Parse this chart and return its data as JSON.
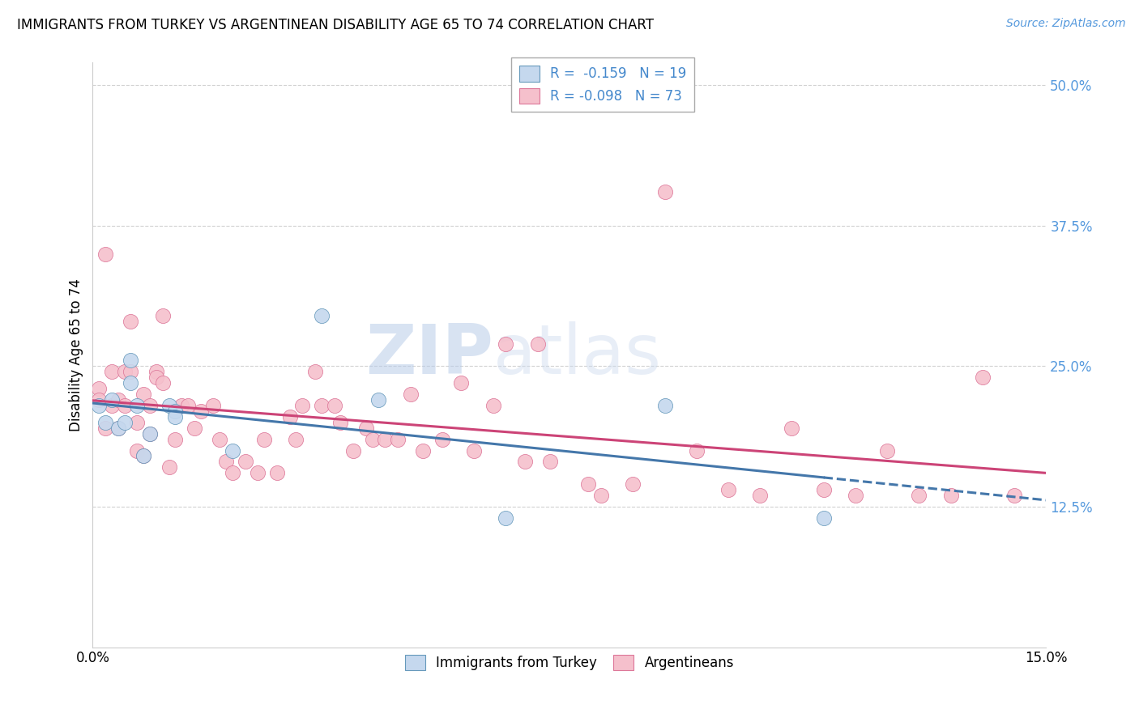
{
  "title": "IMMIGRANTS FROM TURKEY VS ARGENTINEAN DISABILITY AGE 65 TO 74 CORRELATION CHART",
  "source": "Source: ZipAtlas.com",
  "ylabel": "Disability Age 65 to 74",
  "xmin": 0.0,
  "xmax": 0.15,
  "ymin": 0.0,
  "ymax": 0.52,
  "ytick_vals": [
    0.125,
    0.25,
    0.375,
    0.5
  ],
  "ytick_labels": [
    "12.5%",
    "25.0%",
    "37.5%",
    "50.0%"
  ],
  "xtick_vals": [
    0.0,
    0.05,
    0.1,
    0.15
  ],
  "xtick_labels": [
    "0.0%",
    "",
    "",
    "15.0%"
  ],
  "turkey_R": -0.159,
  "turkey_N": 19,
  "argentina_R": -0.098,
  "argentina_N": 73,
  "legend_label_turkey": "Immigrants from Turkey",
  "legend_label_argentina": "Argentineans",
  "turkey_fill_color": "#c5d8ee",
  "turkey_edge_color": "#6699bb",
  "argentina_fill_color": "#f5c0cc",
  "argentina_edge_color": "#dd7799",
  "turkey_line_color": "#4477aa",
  "argentina_line_color": "#cc4477",
  "grid_color": "#cccccc",
  "watermark_zi": "ZIP",
  "watermark_atlas": "atlas",
  "turkey_x": [
    0.001,
    0.002,
    0.003,
    0.004,
    0.005,
    0.006,
    0.006,
    0.007,
    0.008,
    0.009,
    0.012,
    0.013,
    0.013,
    0.022,
    0.036,
    0.045,
    0.065,
    0.09,
    0.115
  ],
  "turkey_y": [
    0.215,
    0.2,
    0.22,
    0.195,
    0.2,
    0.255,
    0.235,
    0.215,
    0.17,
    0.19,
    0.215,
    0.21,
    0.205,
    0.175,
    0.295,
    0.22,
    0.115,
    0.215,
    0.115
  ],
  "argentina_x": [
    0.001,
    0.001,
    0.002,
    0.002,
    0.003,
    0.003,
    0.004,
    0.004,
    0.005,
    0.005,
    0.006,
    0.006,
    0.007,
    0.007,
    0.008,
    0.008,
    0.009,
    0.009,
    0.01,
    0.01,
    0.011,
    0.011,
    0.012,
    0.013,
    0.014,
    0.015,
    0.016,
    0.017,
    0.019,
    0.02,
    0.021,
    0.022,
    0.024,
    0.026,
    0.027,
    0.029,
    0.031,
    0.032,
    0.033,
    0.035,
    0.036,
    0.038,
    0.039,
    0.041,
    0.043,
    0.044,
    0.046,
    0.048,
    0.05,
    0.052,
    0.055,
    0.058,
    0.06,
    0.063,
    0.065,
    0.068,
    0.07,
    0.072,
    0.078,
    0.08,
    0.085,
    0.09,
    0.095,
    0.1,
    0.105,
    0.11,
    0.115,
    0.12,
    0.125,
    0.13,
    0.135,
    0.14,
    0.145
  ],
  "argentina_y": [
    0.23,
    0.22,
    0.195,
    0.35,
    0.245,
    0.215,
    0.22,
    0.195,
    0.245,
    0.215,
    0.29,
    0.245,
    0.175,
    0.2,
    0.17,
    0.225,
    0.215,
    0.19,
    0.245,
    0.24,
    0.295,
    0.235,
    0.16,
    0.185,
    0.215,
    0.215,
    0.195,
    0.21,
    0.215,
    0.185,
    0.165,
    0.155,
    0.165,
    0.155,
    0.185,
    0.155,
    0.205,
    0.185,
    0.215,
    0.245,
    0.215,
    0.215,
    0.2,
    0.175,
    0.195,
    0.185,
    0.185,
    0.185,
    0.225,
    0.175,
    0.185,
    0.235,
    0.175,
    0.215,
    0.27,
    0.165,
    0.27,
    0.165,
    0.145,
    0.135,
    0.145,
    0.405,
    0.175,
    0.14,
    0.135,
    0.195,
    0.14,
    0.135,
    0.175,
    0.135,
    0.135,
    0.24,
    0.135
  ],
  "title_fontsize": 12,
  "source_fontsize": 10,
  "tick_fontsize": 12,
  "ylabel_fontsize": 12
}
